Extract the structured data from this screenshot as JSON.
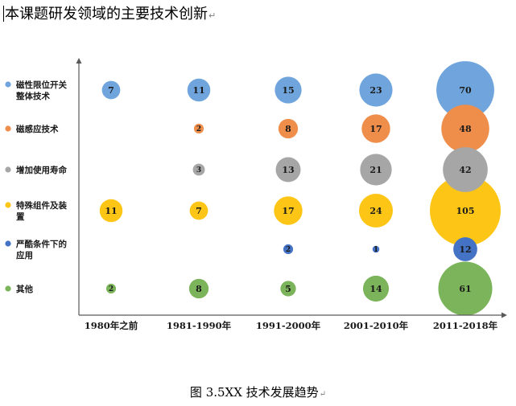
{
  "document": {
    "heading": "本课题研发领域的主要技术创新",
    "caption": "图 3.5XX 技术发展趋势",
    "paragraph_mark": "↵"
  },
  "chart_data": {
    "type": "bubble",
    "title": "",
    "xlabel": "",
    "ylabel": "",
    "grid": false,
    "legend_position": "left",
    "categories": [
      "1980年之前",
      "1981-1990年",
      "1991-2000年",
      "2001-2010年",
      "2011-2018年"
    ],
    "series": [
      {
        "name": "磁性限位开关整体技术",
        "legend_lines": [
          "磁性限位开关",
          "整体技术"
        ],
        "color": "#6fa5dc",
        "values": [
          7,
          11,
          15,
          23,
          70
        ]
      },
      {
        "name": "磁感应技术",
        "legend_lines": [
          "磁感应技术"
        ],
        "color": "#ef8d4b",
        "values": [
          null,
          2,
          8,
          17,
          48
        ]
      },
      {
        "name": "增加使用寿命",
        "legend_lines": [
          "增加使用寿命"
        ],
        "color": "#a6a6a6",
        "values": [
          null,
          3,
          13,
          21,
          42
        ]
      },
      {
        "name": "特殊组件及装置",
        "legend_lines": [
          "特殊组件及装",
          "置"
        ],
        "color": "#fdc616",
        "values": [
          11,
          7,
          17,
          24,
          105
        ]
      },
      {
        "name": "严酷条件下的应用",
        "legend_lines": [
          "严酷条件下的",
          "应用"
        ],
        "color": "#4472c4",
        "values": [
          null,
          null,
          2,
          1,
          12
        ]
      },
      {
        "name": "其他",
        "legend_lines": [
          "其他"
        ],
        "color": "#7bb45a",
        "values": [
          2,
          8,
          5,
          14,
          61
        ]
      }
    ]
  }
}
